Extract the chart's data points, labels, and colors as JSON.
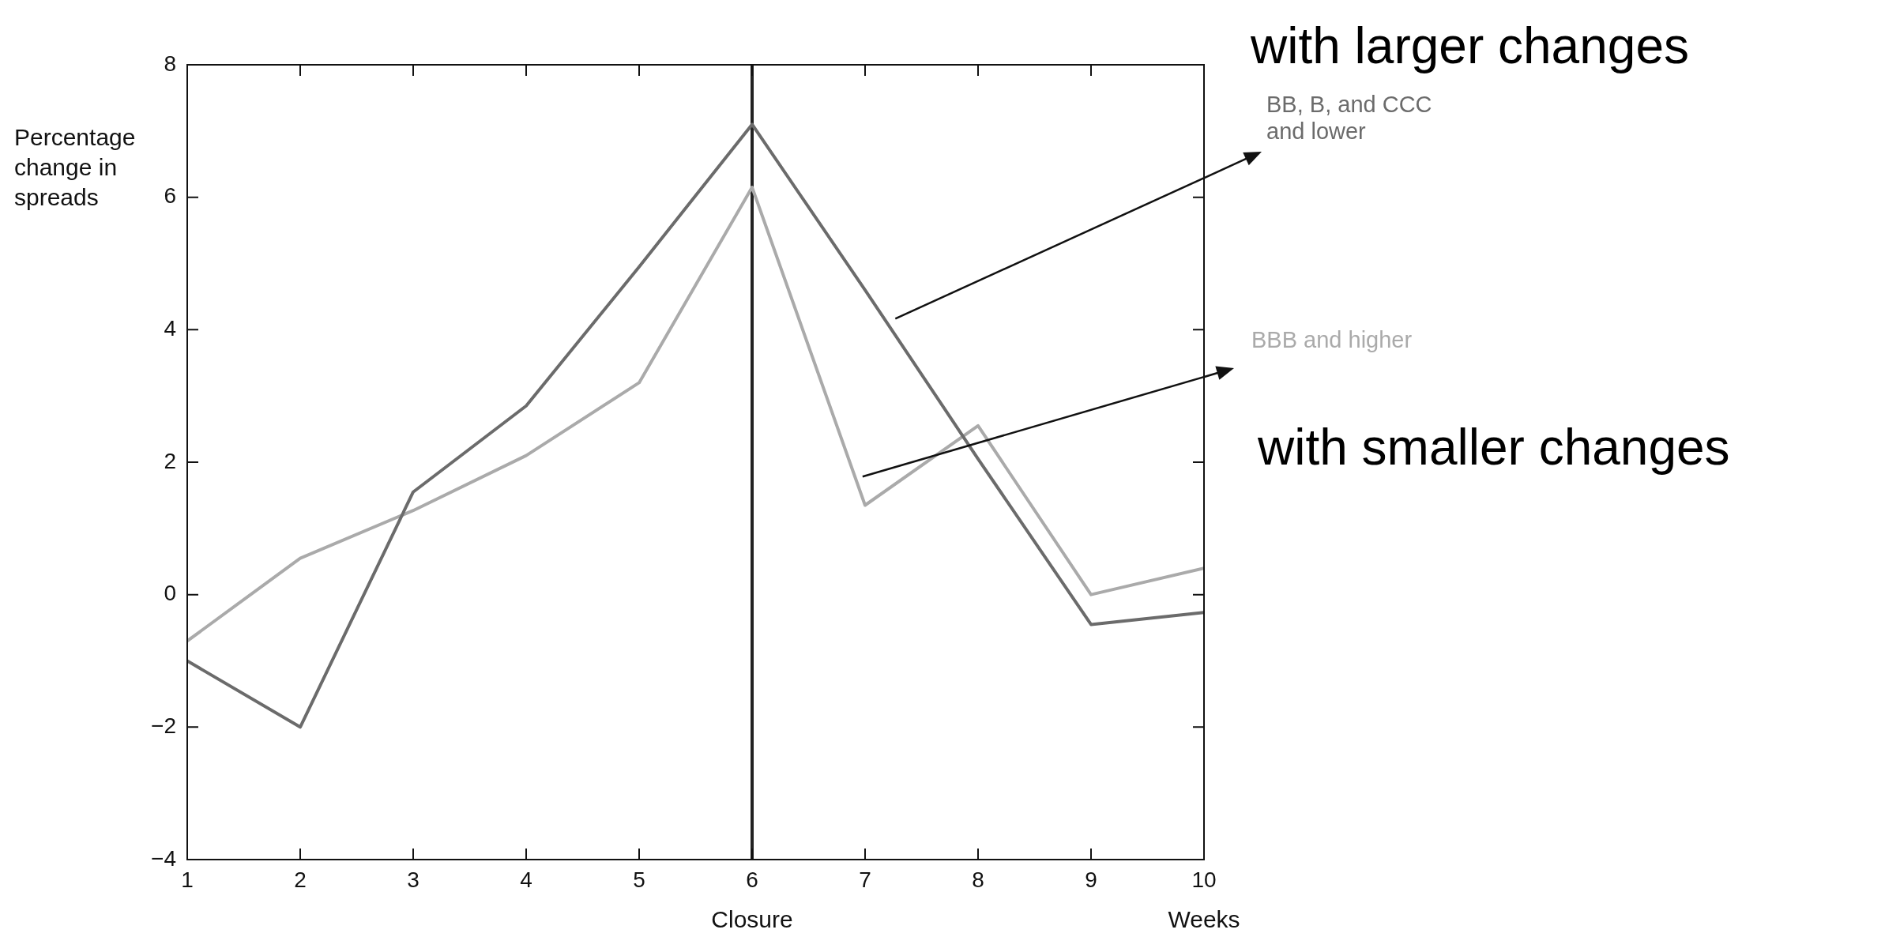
{
  "chart_data": {
    "type": "line",
    "ylabel": "Percentage change in spreads",
    "xlabel": "Weeks",
    "x": [
      1,
      2,
      3,
      4,
      5,
      6,
      7,
      8,
      9,
      10
    ],
    "series": [
      {
        "name": "BB, B, and CCC and lower",
        "color": "#6b6b6b",
        "values": [
          -1.0,
          -2.0,
          1.55,
          2.85,
          4.95,
          7.1,
          4.6,
          2.05,
          -0.45,
          -0.27
        ]
      },
      {
        "name": "BBB and higher",
        "color": "#aaaaaa",
        "values": [
          -0.7,
          0.55,
          1.27,
          2.1,
          3.2,
          6.15,
          1.35,
          2.55,
          0.0,
          0.4
        ]
      }
    ],
    "xlim": [
      1,
      10
    ],
    "xticks": [
      1,
      2,
      3,
      4,
      5,
      6,
      7,
      8,
      9,
      10
    ],
    "ylim": [
      -4,
      8
    ],
    "yticks": [
      {
        "value": -4,
        "label": "−4"
      },
      {
        "value": -2,
        "label": "−2"
      },
      0,
      2,
      4,
      6,
      8
    ],
    "ref_lines": [
      {
        "axis": "x",
        "value": 6,
        "label": "Closure",
        "color": "#222222"
      }
    ],
    "annotations": [
      "with larger changes",
      "with smaller changes"
    ],
    "grid": false,
    "legend": false,
    "marker": "none",
    "line_style": "solid"
  }
}
